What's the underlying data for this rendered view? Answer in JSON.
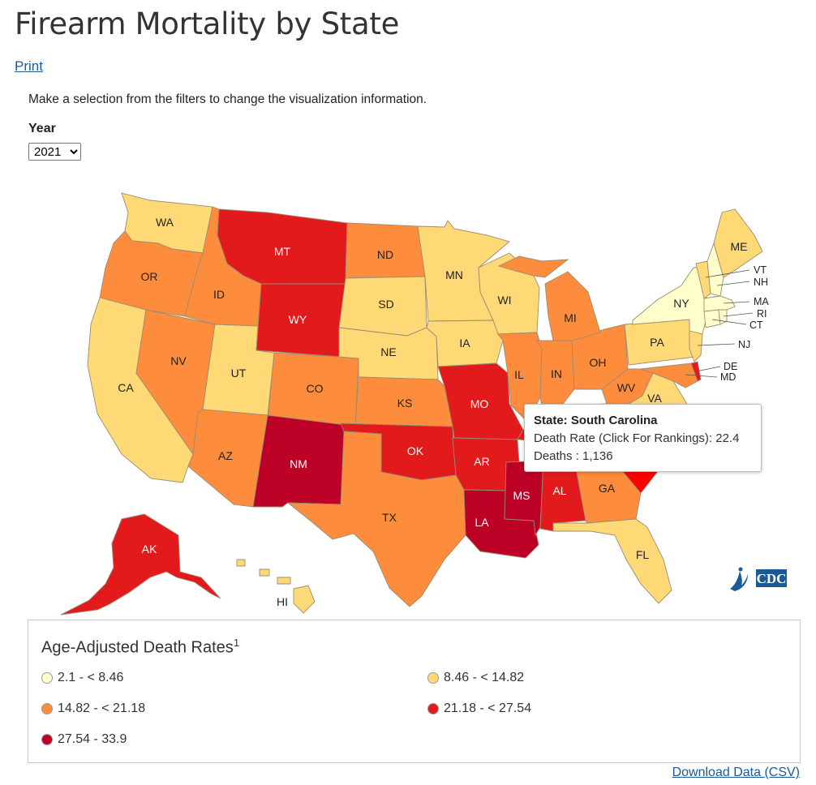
{
  "page": {
    "title": "Firearm Mortality by State",
    "print_label": "Print",
    "instructions": "Make a selection from the filters to change the visualization information.",
    "download_label": "Download Data (CSV)"
  },
  "filters": {
    "year_label": "Year",
    "year_value": "2021",
    "year_options": [
      "2021"
    ]
  },
  "legend": {
    "title": "Age-Adjusted Death Rates",
    "footnote": "1",
    "items": [
      {
        "label": "2.1 - < 8.46",
        "color": "#ffffcc"
      },
      {
        "label": "8.46 - < 14.82",
        "color": "#fed976"
      },
      {
        "label": "14.82 - < 21.18",
        "color": "#fd8d3c"
      },
      {
        "label": "21.18 - < 27.54",
        "color": "#e31a1c"
      },
      {
        "label": "27.54 - 33.9",
        "color": "#bd0026"
      }
    ]
  },
  "tooltip": {
    "title": "State: South Carolina",
    "rate_line": "Death Rate (Click For Rankings): 22.4",
    "deaths_line": "Deaths : 1,136"
  },
  "map": {
    "colors": {
      "class1": "#ffffcc",
      "class2": "#fed976",
      "class3": "#fd8d3c",
      "class4": "#e31a1c",
      "class5": "#bd0026",
      "highlight": "#ff0000"
    },
    "states": {
      "WA": "WA",
      "OR": "OR",
      "CA": "CA",
      "ID": "ID",
      "NV": "NV",
      "UT": "UT",
      "AZ": "AZ",
      "MT": "MT",
      "WY": "WY",
      "CO": "CO",
      "NM": "NM",
      "ND": "ND",
      "SD": "SD",
      "NE": "NE",
      "KS": "KS",
      "OK": "OK",
      "TX": "TX",
      "MN": "MN",
      "IA": "IA",
      "MO": "MO",
      "AR": "AR",
      "LA": "LA",
      "WI": "WI",
      "IL": "IL",
      "MI": "MI",
      "IN": "IN",
      "OH": "OH",
      "MS": "MS",
      "AL": "AL",
      "GA": "GA",
      "FL": "FL",
      "WV": "WV",
      "VA": "VA",
      "PA": "PA",
      "NY": "NY",
      "ME": "ME",
      "VT": "VT",
      "NH": "NH",
      "MA": "MA",
      "RI": "RI",
      "CT": "CT",
      "NJ": "NJ",
      "DE": "DE",
      "MD": "MD",
      "AK": "AK",
      "HI": "HI"
    }
  },
  "logo": {
    "text": "CDC"
  }
}
